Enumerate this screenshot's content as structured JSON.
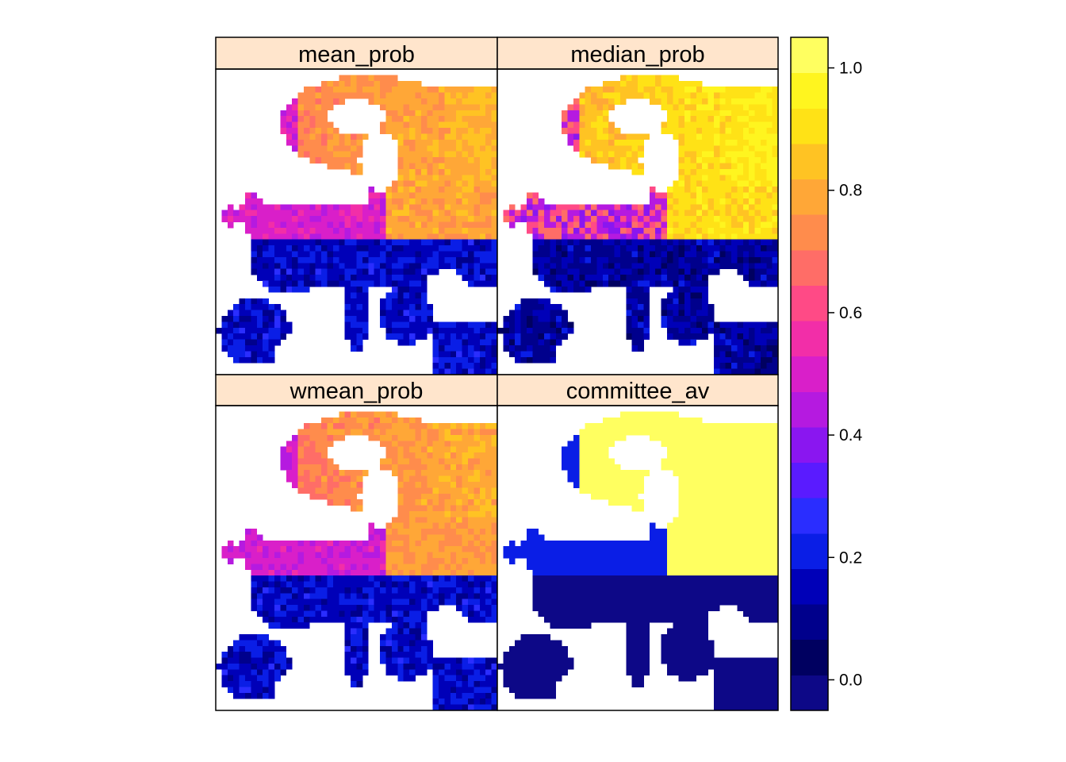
{
  "chart_data": {
    "type": "heatmap",
    "panels": [
      {
        "name": "mean_prob"
      },
      {
        "name": "median_prob"
      },
      {
        "name": "wmean_prob"
      },
      {
        "name": "committee_av"
      }
    ],
    "colorbar": {
      "range": [
        -0.05,
        1.05
      ],
      "ticks": [
        {
          "value": 0.0,
          "label": "0.0"
        },
        {
          "value": 0.2,
          "label": "0.2"
        },
        {
          "value": 0.4,
          "label": "0.4"
        },
        {
          "value": 0.6,
          "label": "0.6"
        },
        {
          "value": 0.8,
          "label": "0.8"
        },
        {
          "value": 1.0,
          "label": "1.0"
        }
      ],
      "colors": [
        "#0d0887",
        "#000060",
        "#00008c",
        "#0000b8",
        "#0a1ee6",
        "#2a2dff",
        "#5a1bff",
        "#8a16f0",
        "#b51ae0",
        "#d91fc9",
        "#f22ea8",
        "#ff4a86",
        "#ff6d67",
        "#ff8c4c",
        "#ffa737",
        "#ffc323",
        "#ffe216",
        "#fff51f",
        "#ffff60"
      ],
      "note": "plasma-like palette: dark navy -> blue -> purple -> pink -> orange -> yellow"
    },
    "grid": {
      "cols": 48,
      "rows": 52
    }
  }
}
